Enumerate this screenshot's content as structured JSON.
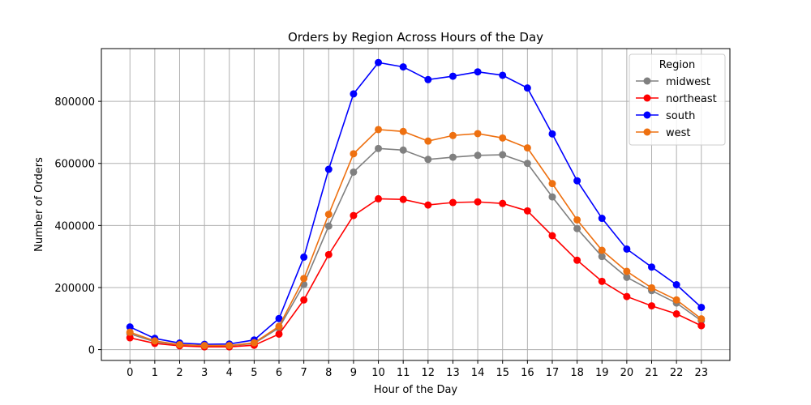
{
  "chart_data": {
    "type": "line",
    "title": "Orders by Region Across Hours of the Day",
    "xlabel": "Hour of the Day",
    "ylabel": "Number of Orders",
    "x": [
      0,
      1,
      2,
      3,
      4,
      5,
      6,
      7,
      8,
      9,
      10,
      11,
      12,
      13,
      14,
      15,
      16,
      17,
      18,
      19,
      20,
      21,
      22,
      23
    ],
    "x_ticks": [
      "0",
      "1",
      "2",
      "3",
      "4",
      "5",
      "6",
      "7",
      "8",
      "9",
      "10",
      "11",
      "12",
      "13",
      "14",
      "15",
      "16",
      "17",
      "18",
      "19",
      "20",
      "21",
      "22",
      "23"
    ],
    "xlim": [
      -1.15,
      24.15
    ],
    "ylim": [
      -35000,
      970000
    ],
    "y_ticks": [
      0,
      200000,
      400000,
      600000,
      800000
    ],
    "y_tick_labels": [
      "0",
      "200000",
      "400000",
      "600000",
      "800000"
    ],
    "grid": true,
    "legend": {
      "title": "Region",
      "placement": "top-right"
    },
    "series": [
      {
        "name": "midwest",
        "color": "#808080",
        "values": [
          51000,
          25000,
          15000,
          12000,
          12000,
          20000,
          70000,
          210000,
          398000,
          572000,
          648000,
          643000,
          613000,
          620000,
          626000,
          628000,
          600000,
          492000,
          390000,
          300000,
          233000,
          190000,
          150000,
          93000
        ]
      },
      {
        "name": "northeast",
        "color": "#ff0000",
        "values": [
          38000,
          20000,
          12000,
          9000,
          9000,
          14000,
          50000,
          160000,
          306000,
          432000,
          486000,
          484000,
          466000,
          474000,
          476000,
          471000,
          447000,
          367000,
          288000,
          220000,
          171000,
          141000,
          115000,
          77000
        ]
      },
      {
        "name": "south",
        "color": "#0000ff",
        "values": [
          73000,
          36000,
          21000,
          17000,
          18000,
          31000,
          100000,
          298000,
          581000,
          824000,
          925000,
          911000,
          870000,
          881000,
          895000,
          884000,
          843000,
          695000,
          544000,
          423000,
          324000,
          266000,
          209000,
          136000
        ]
      },
      {
        "name": "west",
        "color": "#ee7010",
        "values": [
          56000,
          28000,
          16000,
          13000,
          13000,
          22000,
          75000,
          229000,
          436000,
          631000,
          709000,
          703000,
          672000,
          690000,
          696000,
          682000,
          650000,
          535000,
          418000,
          320000,
          252000,
          199000,
          160000,
          99000
        ]
      }
    ]
  }
}
